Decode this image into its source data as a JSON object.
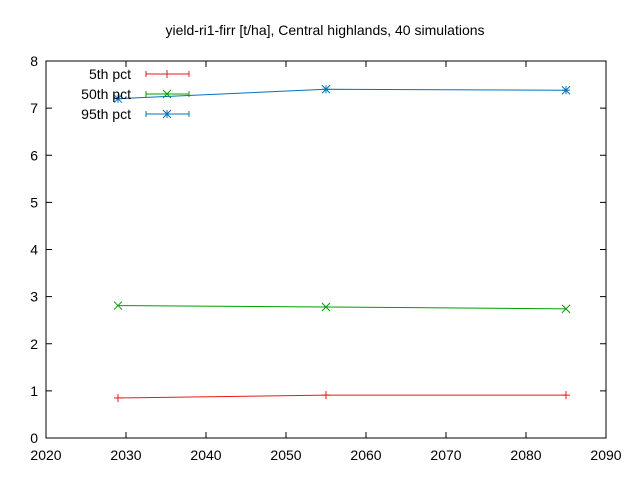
{
  "chart_data": {
    "type": "line",
    "title": "yield-ri1-firr [t/ha], Central highlands, 40 simulations",
    "xlabel": "",
    "ylabel": "",
    "xlim": [
      2020,
      2090
    ],
    "ylim": [
      0,
      8
    ],
    "xticks": [
      2020,
      2030,
      2040,
      2050,
      2060,
      2070,
      2080,
      2090
    ],
    "yticks": [
      0,
      1,
      2,
      3,
      4,
      5,
      6,
      7,
      8
    ],
    "grid": false,
    "legend_position": "top-left",
    "x": [
      2029,
      2055,
      2085
    ],
    "series": [
      {
        "name": "5th pct",
        "marker": "plus",
        "color": "#e41a1c",
        "values": [
          0.85,
          0.91,
          0.91
        ]
      },
      {
        "name": "50th pct",
        "marker": "cross",
        "color": "#009e00",
        "values": [
          2.81,
          2.78,
          2.74
        ]
      },
      {
        "name": "95th pct",
        "marker": "star",
        "color": "#0072bd",
        "values": [
          7.2,
          7.4,
          7.38
        ]
      }
    ]
  }
}
